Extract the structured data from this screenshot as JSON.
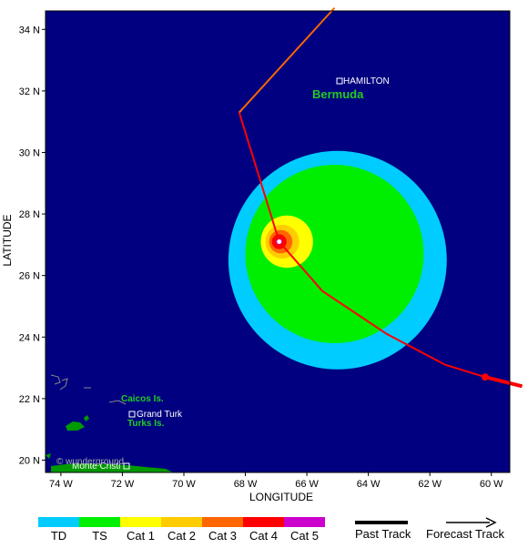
{
  "axes": {
    "xlabel": "LONGITUDE",
    "ylabel": "LATITUDE",
    "lon_ticks": [
      {
        "value": -74,
        "label": "74 W"
      },
      {
        "value": -72,
        "label": "72 W"
      },
      {
        "value": -70,
        "label": "70 W"
      },
      {
        "value": -68,
        "label": "68 W"
      },
      {
        "value": -66,
        "label": "66 W"
      },
      {
        "value": -64,
        "label": "64 W"
      },
      {
        "value": -62,
        "label": "62 W"
      },
      {
        "value": -60,
        "label": "60 W"
      }
    ],
    "lat_ticks": [
      {
        "value": 20,
        "label": "20 N"
      },
      {
        "value": 22,
        "label": "22 N"
      },
      {
        "value": 24,
        "label": "24 N"
      },
      {
        "value": 26,
        "label": "26 N"
      },
      {
        "value": 28,
        "label": "28 N"
      },
      {
        "value": 30,
        "label": "30 N"
      },
      {
        "value": 32,
        "label": "32 N"
      },
      {
        "value": 34,
        "label": "34 N"
      }
    ],
    "lon_range": [
      -74.5,
      -59.4
    ],
    "lat_range": [
      19.6,
      34.6
    ]
  },
  "places": {
    "hamilton": "HAMILTON",
    "bermuda": "Bermuda",
    "caicos": "Caicos Is.",
    "grand_turk": "Grand Turk",
    "turks": "Turks Is.",
    "monte_cristi": "Monte Cristi"
  },
  "watermark": "© wunderground",
  "storm": {
    "center": {
      "lon": -66.9,
      "lat": 27.1
    },
    "past_track": [
      {
        "lon": -59.0,
        "lat": 22.4
      },
      {
        "lon": -60.2,
        "lat": 22.7
      }
    ],
    "forecast_track": [
      {
        "lon": -59.0,
        "lat": 22.4
      },
      {
        "lon": -60.2,
        "lat": 22.7
      },
      {
        "lon": -61.5,
        "lat": 23.1
      },
      {
        "lon": -63.4,
        "lat": 24.1
      },
      {
        "lon": -65.5,
        "lat": 25.5
      },
      {
        "lon": -66.9,
        "lat": 27.1
      },
      {
        "lon": -68.2,
        "lat": 31.3
      }
    ],
    "track_extension": [
      {
        "lon": -68.2,
        "lat": 31.3
      },
      {
        "lon": -65.1,
        "lat": 34.7
      }
    ],
    "wind_field_radii_deg": [
      {
        "category": "TD",
        "rx": 3.55,
        "ry": 3.55,
        "dlon": 1.9,
        "dlat": -0.6
      },
      {
        "category": "TS",
        "rx": 2.9,
        "ry": 2.9,
        "dlon": 1.8,
        "dlat": -0.4
      },
      {
        "category": "Cat 1",
        "rx": 0.85,
        "ry": 0.85,
        "dlon": 0.25,
        "dlat": 0.0
      },
      {
        "category": "Cat 2",
        "rx": 0.55,
        "ry": 0.55,
        "dlon": 0.1,
        "dlat": 0.0
      },
      {
        "category": "Cat 3",
        "rx": 0.38,
        "ry": 0.38,
        "dlon": 0.05,
        "dlat": 0.0
      },
      {
        "category": "Cat 4",
        "rx": 0.24,
        "ry": 0.24,
        "dlon": 0.0,
        "dlat": 0.0
      },
      {
        "category": "Cat 5",
        "rx": 0.1,
        "ry": 0.1,
        "dlon": 0.0,
        "dlat": 0.0
      }
    ]
  },
  "legend": {
    "categories": [
      {
        "label": "TD",
        "color": "#00ccff"
      },
      {
        "label": "TS",
        "color": "#00ee00"
      },
      {
        "label": "Cat 1",
        "color": "#ffff00"
      },
      {
        "label": "Cat 2",
        "color": "#ffcc00"
      },
      {
        "label": "Cat 3",
        "color": "#ff6600"
      },
      {
        "label": "Cat 4",
        "color": "#ff0000"
      },
      {
        "label": "Cat 5",
        "color": "#cc00cc"
      }
    ],
    "past_track_label": "Past Track",
    "forecast_track_label": "Forecast Track"
  },
  "colors": {
    "ocean": "#000080",
    "land": "#009900",
    "track_red": "#ff0000",
    "track_orange": "#ff6600",
    "category_colors": {
      "TD": "#00ccff",
      "TS": "#00ee00",
      "Cat 1": "#ffff00",
      "Cat 2": "#ffcc00",
      "Cat 3": "#ff6600",
      "Cat 4": "#ff0000",
      "Cat 5": "#cc00cc"
    }
  }
}
